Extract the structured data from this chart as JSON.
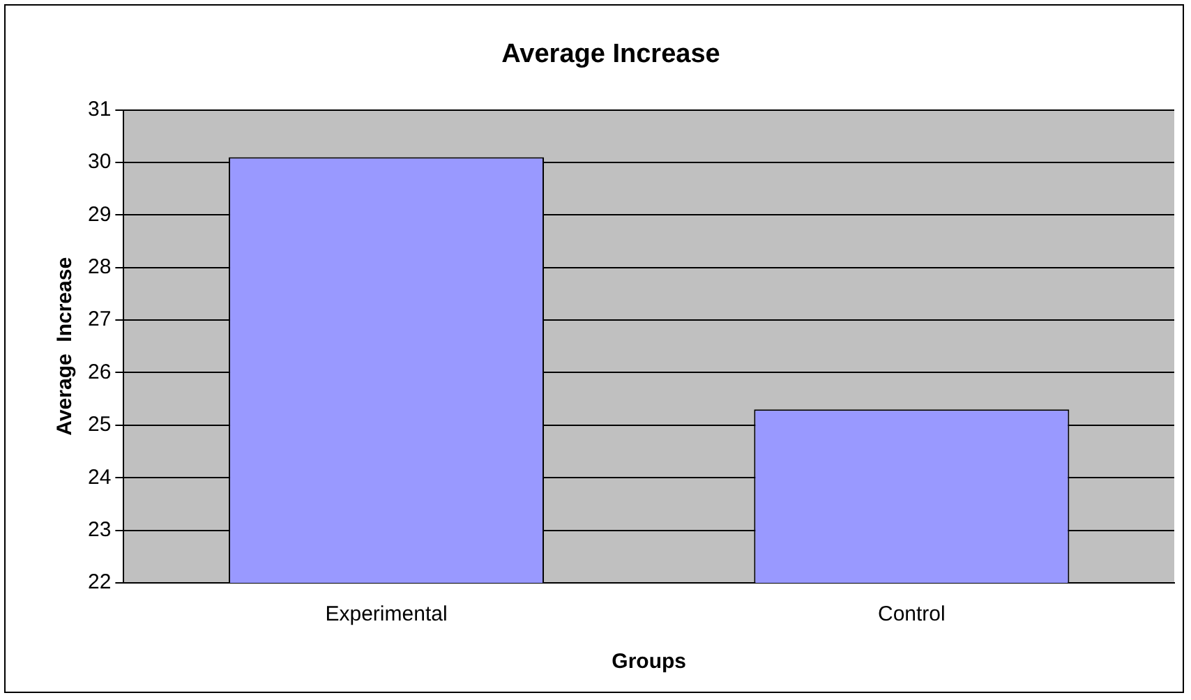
{
  "chart_data": {
    "type": "bar",
    "title": "Average Increase",
    "xlabel": "Groups",
    "ylabel": "Average  Increase",
    "categories": [
      "Experimental",
      "Control"
    ],
    "values": [
      30.1,
      25.3
    ],
    "color": "#9999ff",
    "ylim": [
      22,
      31
    ],
    "yticks": [
      22,
      23,
      24,
      25,
      26,
      27,
      28,
      29,
      30,
      31
    ],
    "grid": "y"
  }
}
